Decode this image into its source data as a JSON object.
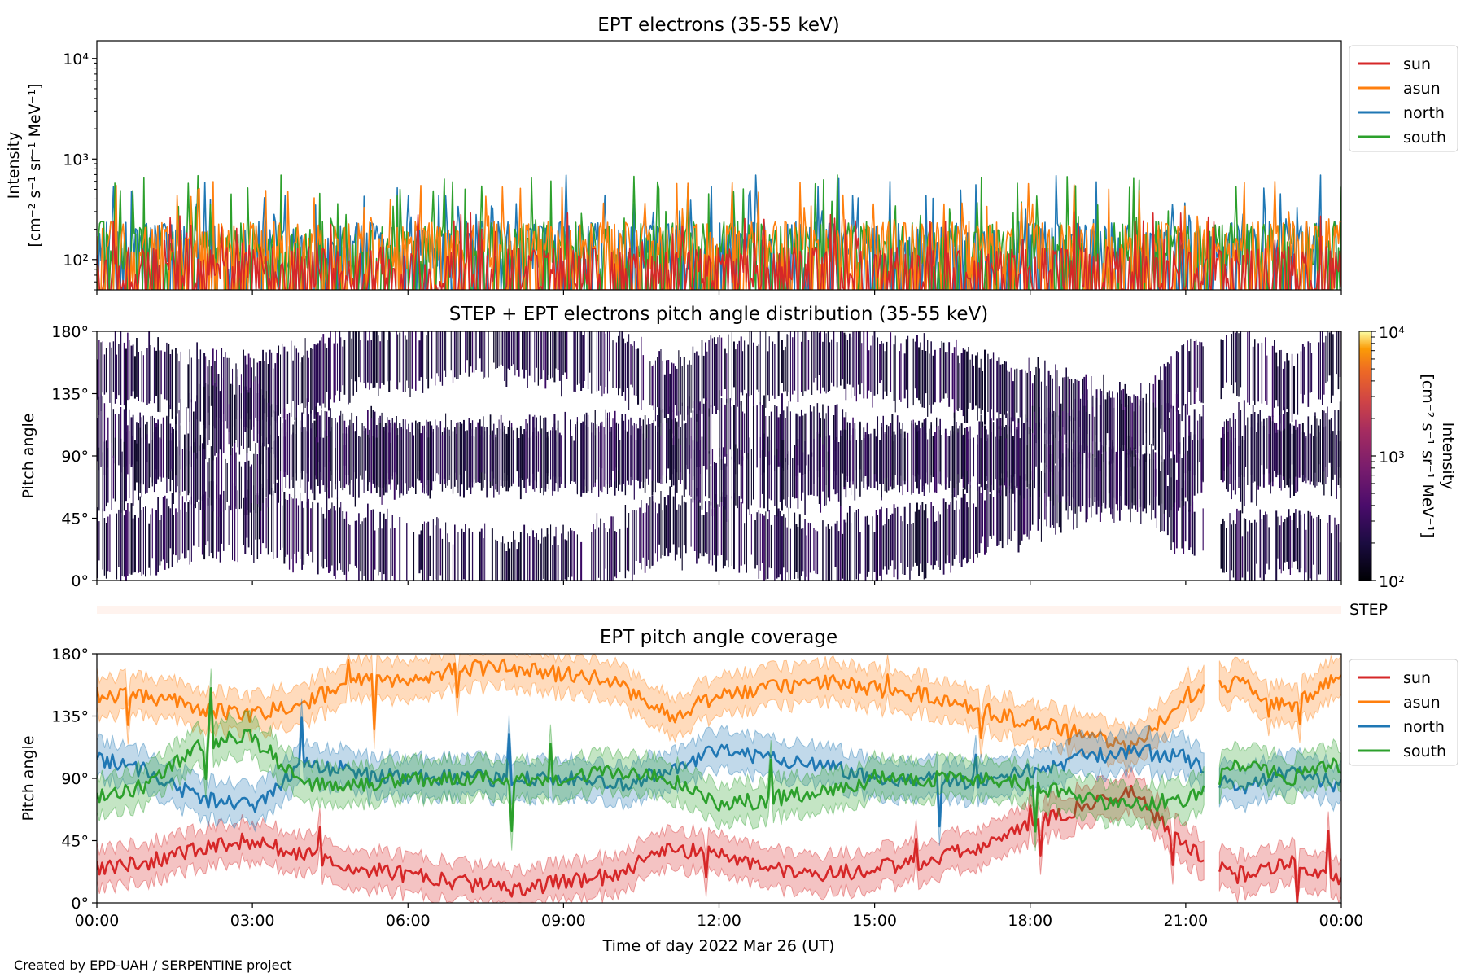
{
  "footer": "Created by EPD-UAH / SERPENTINE project",
  "chart_data": [
    {
      "type": "line",
      "title": "EPT electrons (35-55 keV)",
      "ylabel_line1": "Intensity",
      "ylabel_line2": "[cm⁻² s⁻¹ sr⁻¹ MeV⁻¹]",
      "yscale": "log",
      "ylim": [
        50,
        15000
      ],
      "yticks": [
        {
          "value": 100,
          "label": "10²"
        },
        {
          "value": 1000,
          "label": "10³"
        },
        {
          "value": 10000,
          "label": "10⁴"
        }
      ],
      "xlim_hours": [
        0,
        24
      ],
      "legend_placement": "outside-right",
      "series": [
        {
          "name": "sun",
          "color": "#d62728",
          "typical": 90,
          "peak": 300
        },
        {
          "name": "asun",
          "color": "#ff7f0e",
          "typical": 160,
          "peak": 600
        },
        {
          "name": "north",
          "color": "#1f77b4",
          "typical": 160,
          "peak": 700
        },
        {
          "name": "south",
          "color": "#2ca02c",
          "typical": 160,
          "peak": 700
        }
      ]
    },
    {
      "type": "heatmap",
      "title": "STEP + EPT electrons pitch angle distribution (35-55 keV)",
      "ylabel": "Pitch angle",
      "ylim": [
        0,
        180
      ],
      "yticks": [
        {
          "value": 0,
          "label": "0°"
        },
        {
          "value": 45,
          "label": "45°"
        },
        {
          "value": 90,
          "label": "90°"
        },
        {
          "value": 135,
          "label": "135°"
        },
        {
          "value": 180,
          "label": "180°"
        }
      ],
      "colorbar": {
        "scale": "log",
        "range": [
          100,
          10000
        ],
        "label_line1": "Intensity",
        "label_line2": "[cm⁻² s⁻¹ sr⁻¹ MeV⁻¹]",
        "ticks": [
          {
            "value": 100,
            "label": "10²"
          },
          {
            "value": 1000,
            "label": "10³"
          },
          {
            "value": 10000,
            "label": "10⁴"
          }
        ]
      },
      "data_gaps_hours": [
        [
          21.35,
          21.65
        ]
      ],
      "step_label": "STEP"
    },
    {
      "type": "line",
      "title": "EPT pitch angle coverage",
      "ylabel": "Pitch angle",
      "xlabel": "Time of day 2022 Mar 26 (UT)",
      "ylim": [
        0,
        180
      ],
      "yticks": [
        {
          "value": 0,
          "label": "0°"
        },
        {
          "value": 45,
          "label": "45°"
        },
        {
          "value": 90,
          "label": "90°"
        },
        {
          "value": 135,
          "label": "135°"
        },
        {
          "value": 180,
          "label": "180°"
        }
      ],
      "xticks": [
        "00:00",
        "03:00",
        "06:00",
        "09:00",
        "12:00",
        "15:00",
        "18:00",
        "21:00",
        "00:00"
      ],
      "xlim_hours": [
        0,
        24
      ],
      "legend_placement": "outside-right",
      "series": [
        {
          "name": "sun",
          "color": "#d62728",
          "x": [
            0,
            1,
            2,
            3,
            4,
            5,
            6,
            7,
            8,
            9,
            10,
            11,
            12,
            13,
            14,
            15,
            16,
            17,
            18,
            19,
            20,
            21,
            22,
            23,
            24
          ],
          "y": [
            25,
            30,
            40,
            45,
            35,
            25,
            20,
            15,
            10,
            15,
            20,
            40,
            35,
            25,
            20,
            25,
            30,
            40,
            55,
            70,
            80,
            40,
            20,
            30,
            15
          ]
        },
        {
          "name": "asun",
          "color": "#ff7f0e",
          "x": [
            0,
            1,
            2,
            3,
            4,
            5,
            6,
            7,
            8,
            9,
            10,
            11,
            12,
            13,
            14,
            15,
            16,
            17,
            18,
            19,
            20,
            21,
            22,
            23,
            24
          ],
          "y": [
            150,
            150,
            140,
            135,
            145,
            160,
            160,
            170,
            170,
            165,
            160,
            135,
            150,
            155,
            160,
            155,
            150,
            140,
            130,
            125,
            110,
            150,
            160,
            140,
            165
          ]
        },
        {
          "name": "north",
          "color": "#1f77b4",
          "x": [
            0,
            1,
            2,
            3,
            4,
            5,
            6,
            7,
            8,
            9,
            10,
            11,
            12,
            13,
            14,
            15,
            16,
            17,
            18,
            19,
            20,
            21,
            22,
            23,
            24
          ],
          "y": [
            105,
            95,
            75,
            70,
            100,
            95,
            90,
            90,
            90,
            90,
            85,
            95,
            110,
            105,
            100,
            90,
            90,
            88,
            95,
            105,
            110,
            105,
            80,
            95,
            85
          ]
        },
        {
          "name": "south",
          "color": "#2ca02c",
          "x": [
            0,
            1,
            2,
            3,
            4,
            5,
            6,
            7,
            8,
            9,
            10,
            11,
            12,
            13,
            14,
            15,
            16,
            17,
            18,
            19,
            20,
            21,
            22,
            23,
            24
          ],
          "y": [
            75,
            85,
            115,
            120,
            85,
            85,
            90,
            90,
            90,
            90,
            95,
            90,
            70,
            75,
            80,
            90,
            90,
            90,
            85,
            75,
            70,
            75,
            100,
            90,
            100
          ]
        }
      ],
      "data_gaps_hours": [
        [
          21.35,
          21.65
        ]
      ]
    }
  ]
}
